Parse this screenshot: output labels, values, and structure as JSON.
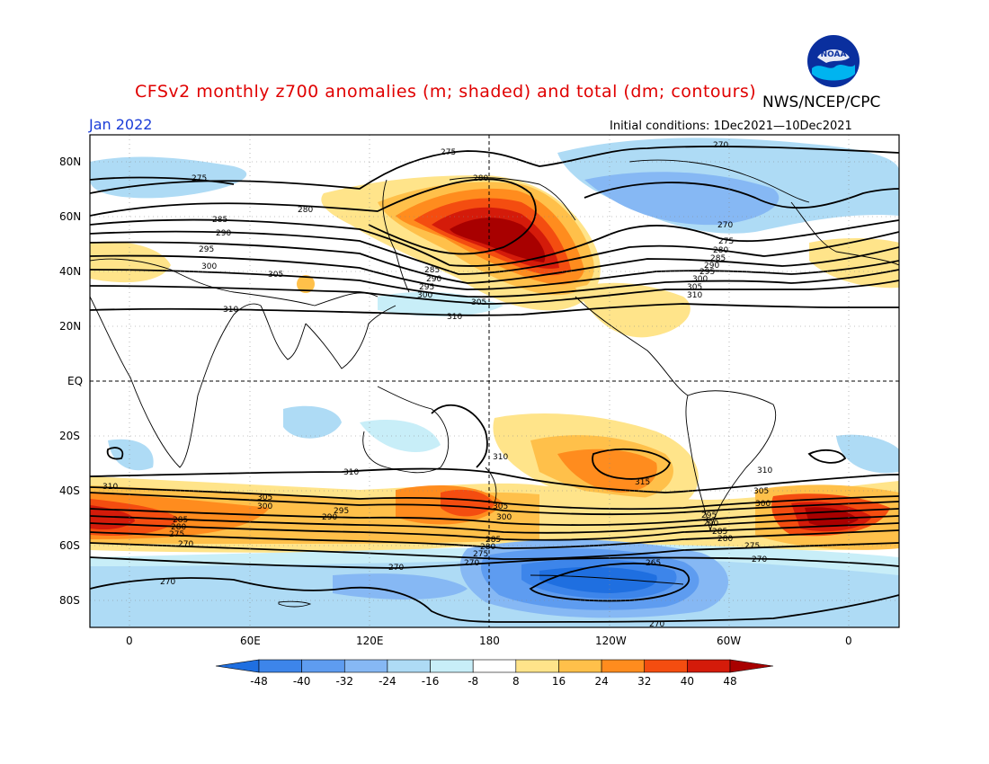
{
  "title": "CFSv2 monthly z700 anomalies (m; shaded) and total (dm; contours)",
  "agency": "NWS/NCEP/CPC",
  "month": "Jan 2022",
  "initial_conditions": "Initial conditions: 1Dec2021—10Dec2021",
  "logo_text": "NOAA",
  "lat_labels": [
    "80N",
    "60N",
    "40N",
    "20N",
    "EQ",
    "20S",
    "40S",
    "60S",
    "80S"
  ],
  "lon_labels": [
    "0",
    "60E",
    "120E",
    "180",
    "120W",
    "60W",
    "0"
  ],
  "colorbar_ticks": [
    "-48",
    "-40",
    "-32",
    "-24",
    "-16",
    "-8",
    "8",
    "16",
    "24",
    "32",
    "40",
    "48"
  ],
  "colorbar_colors": [
    "#1f6fe0",
    "#3d85ea",
    "#5e9cf0",
    "#86b8f4",
    "#aedbf5",
    "#c8eef8",
    "#ffffff",
    "#ffe48a",
    "#ffc04a",
    "#ff8c1e",
    "#f44d10",
    "#d41b0a",
    "#a80000"
  ],
  "contour_labels": [
    "275",
    "270",
    "280",
    "285",
    "290",
    "295",
    "300",
    "305",
    "310",
    "315",
    "265"
  ],
  "colors": {
    "title": "#e00000",
    "month": "#1a3cd8"
  }
}
